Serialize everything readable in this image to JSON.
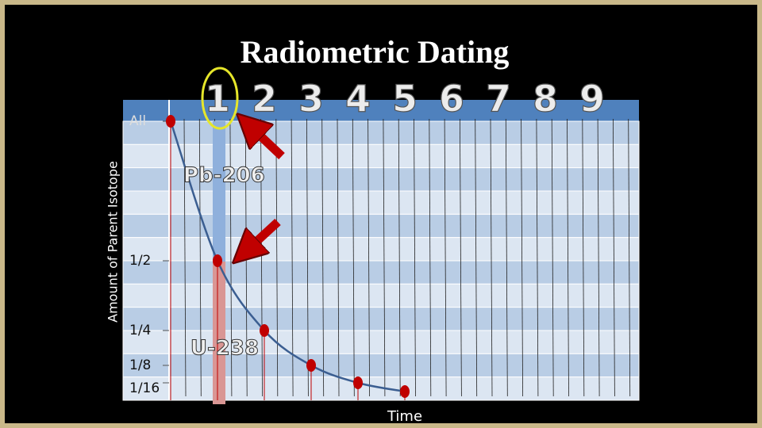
{
  "chart_data": {
    "type": "line",
    "title": "Radiometric Dating",
    "y_label": "Amount of Parent Isotope",
    "x_label": "Time",
    "x": [
      0,
      1,
      2,
      3,
      4,
      5
    ],
    "values": [
      1,
      0.5,
      0.25,
      0.125,
      0.0625,
      0.03125
    ],
    "line_color": "#3b5e91",
    "point_color": "#c00000",
    "xlim": [
      0,
      10
    ],
    "ylim": [
      0,
      1
    ],
    "xticks": [
      1,
      2,
      3,
      4,
      5,
      6,
      7,
      8,
      9
    ],
    "yticks": [
      {
        "value": 1,
        "label": "All"
      },
      {
        "value": 0.5,
        "label": "1/2"
      },
      {
        "value": 0.25,
        "label": "1/4"
      },
      {
        "value": 0.125,
        "label": "1/8"
      },
      {
        "value": 0.0625,
        "label": "1/16"
      }
    ],
    "annotations": [
      "Pb-206",
      "U-238"
    ]
  }
}
